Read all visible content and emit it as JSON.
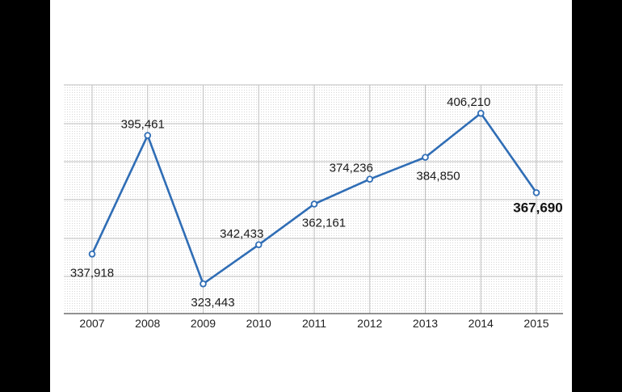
{
  "chart_data": {
    "type": "line",
    "title": "",
    "xlabel": "",
    "ylabel": "",
    "categories": [
      "2007",
      "2008",
      "2009",
      "2010",
      "2011",
      "2012",
      "2013",
      "2014",
      "2015"
    ],
    "values": [
      337918,
      395461,
      323443,
      342433,
      362161,
      374236,
      384850,
      406210,
      367690
    ],
    "value_labels": [
      "337,918",
      "395,461",
      "323,443",
      "342,433",
      "362,161",
      "374,236",
      "384,850",
      "406,210",
      "367,690"
    ],
    "highlight_last": true,
    "ylim": [
      309000,
      420000
    ],
    "grid": true,
    "legend": "none",
    "colors": {
      "line": "#2f6db5",
      "marker_fill": "#ffffff",
      "grid": "#bfbfbf",
      "background_dots": "#d6d6d6",
      "panel": "#ffffff",
      "outer": "#000000"
    }
  }
}
